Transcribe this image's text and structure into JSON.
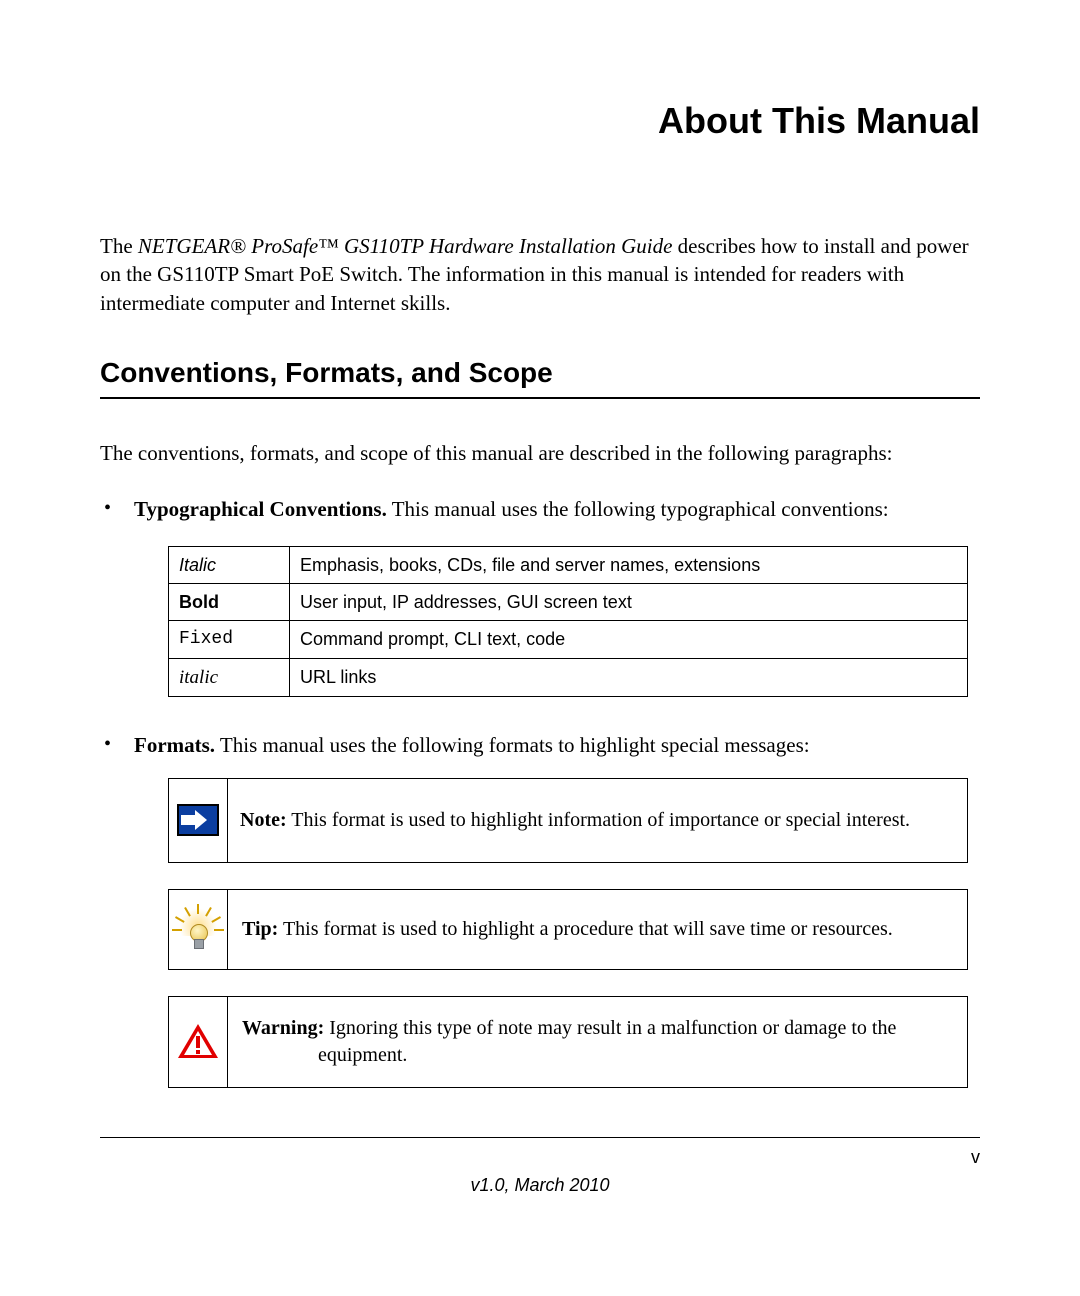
{
  "title": "About This Manual",
  "intro": {
    "pre": "The ",
    "product_italic": "NETGEAR® ProSafe™ GS110TP Hardware Installation Guide",
    "post": " describes how to install and power on the GS110TP Smart PoE Switch. The information in this manual is intended for readers with intermediate computer and Internet skills."
  },
  "section_heading": "Conventions, Formats, and Scope",
  "section_intro": "The conventions, formats, and scope of this manual are described in the following paragraphs:",
  "bullet1": {
    "label": "Typographical Conventions.",
    "text": " This manual uses the following typographical conventions:"
  },
  "table": {
    "rows": [
      {
        "c1": "Italic",
        "c1_style": "t-italic",
        "c2": "Emphasis, books, CDs, file and server names, extensions"
      },
      {
        "c1": "Bold",
        "c1_style": "t-bold",
        "c2": "User input, IP addresses, GUI screen text"
      },
      {
        "c1": "Fixed",
        "c1_style": "t-mono",
        "c2": "Command prompt, CLI text, code"
      },
      {
        "c1": "italic",
        "c1_style": "t-italic-serif",
        "c2": "URL links"
      }
    ]
  },
  "bullet2": {
    "label": "Formats.",
    "text": " This manual uses the following formats to highlight special messages:"
  },
  "note": {
    "label": "Note:",
    "text": " This format is used to highlight information of importance or special interest."
  },
  "tip": {
    "label": "Tip:",
    "text": " This format is used to highlight a procedure that will save time or resources."
  },
  "warning": {
    "label": "Warning:",
    "text_line1": " Ignoring this type of note may result in a malfunction or damage to the",
    "text_line2": "equipment."
  },
  "footer": {
    "page": "v",
    "version": "v1.0, March 2010"
  },
  "colors": {
    "note_bg": "#0b3ea0",
    "warning_red": "#e10000",
    "tip_yellow": "#e8c24a"
  }
}
